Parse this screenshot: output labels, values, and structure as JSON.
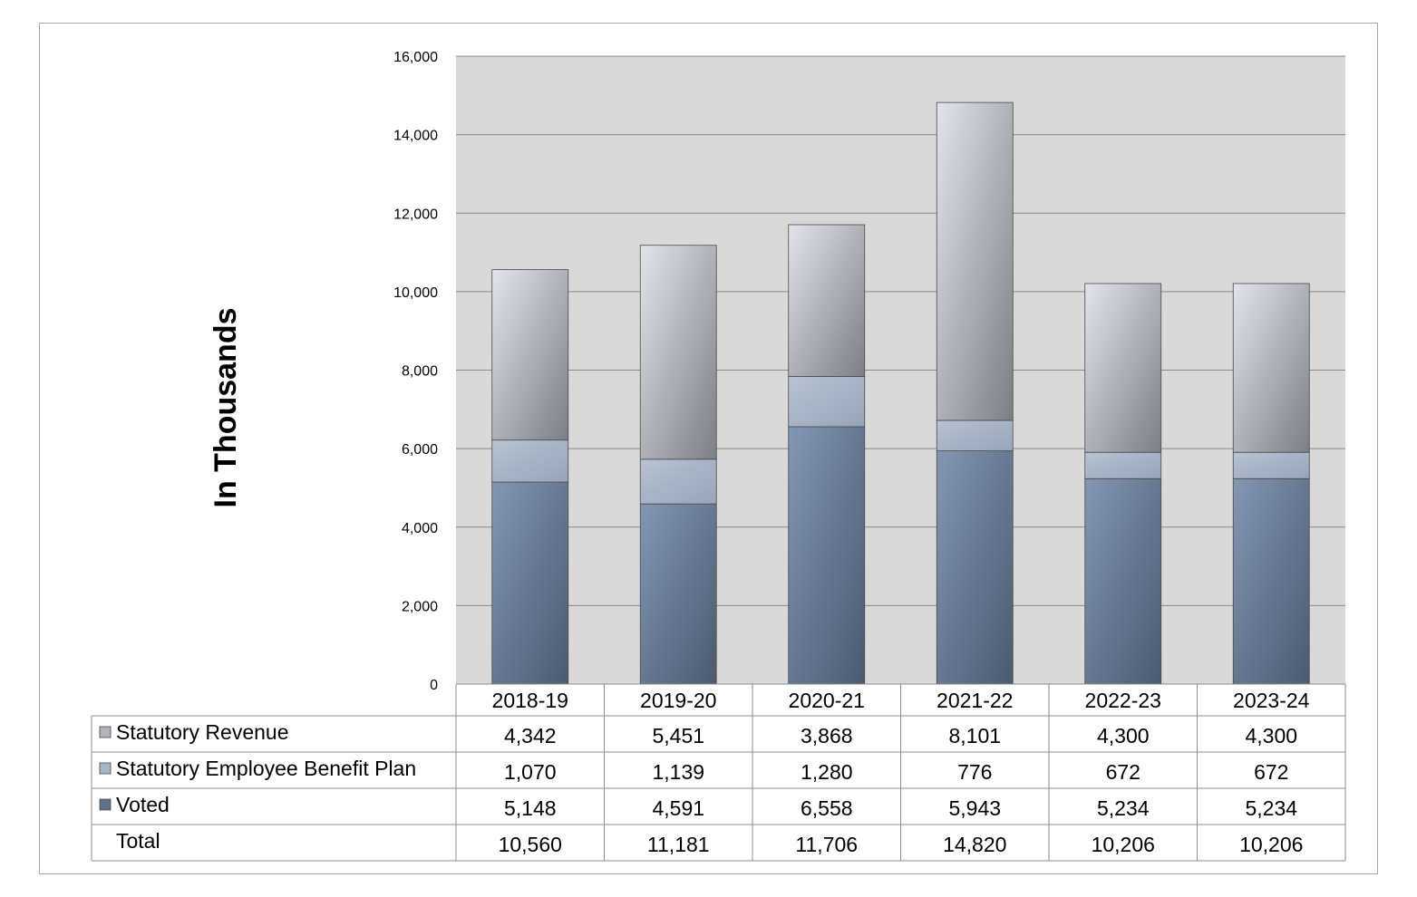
{
  "chart_data": {
    "type": "bar",
    "stacked": true,
    "ylabel": "In Thousands",
    "ylim": [
      0,
      16000
    ],
    "yticks": [
      0,
      2000,
      4000,
      6000,
      8000,
      10000,
      12000,
      14000,
      16000
    ],
    "ytick_labels": [
      "0",
      "2,000",
      "4,000",
      "6,000",
      "8,000",
      "10,000",
      "12,000",
      "14,000",
      "16,000"
    ],
    "grid": true,
    "categories": [
      "2018-19",
      "2019-20",
      "2020-21",
      "2021-22",
      "2022-23",
      "2023-24"
    ],
    "series": [
      {
        "name": "Voted",
        "values": [
          5148,
          4591,
          6558,
          5943,
          5234,
          5234
        ],
        "labels": [
          "5,148",
          "4,591",
          "6,558",
          "5,943",
          "5,234",
          "5,234"
        ],
        "color": "#6f84a0"
      },
      {
        "name": "Statutory Employee Benefit Plan",
        "values": [
          1070,
          1139,
          1280,
          776,
          672,
          672
        ],
        "labels": [
          "1,070",
          "1,139",
          "1,280",
          "776",
          "672",
          "672"
        ],
        "color": "#a8b4c7"
      },
      {
        "name": "Statutory Revenue",
        "values": [
          4342,
          5451,
          3868,
          8101,
          4300,
          4300
        ],
        "labels": [
          "4,342",
          "5,451",
          "3,868",
          "8,101",
          "4,300",
          "4,300"
        ],
        "color": "#b3b8be"
      }
    ],
    "totals": {
      "name": "Total",
      "values": [
        10560,
        11181,
        11706,
        14820,
        10206,
        10206
      ],
      "labels": [
        "10,560",
        "11,181",
        "11,706",
        "14,820",
        "10,206",
        "10,206"
      ]
    },
    "table_rows": [
      "Statutory Revenue",
      "Statutory Employee Benefit Plan",
      "Voted",
      "Total"
    ],
    "colors": {
      "plot_bg": "#d9d9d9",
      "grid": "#8c8c8c",
      "border": "#a6a6a6"
    }
  }
}
